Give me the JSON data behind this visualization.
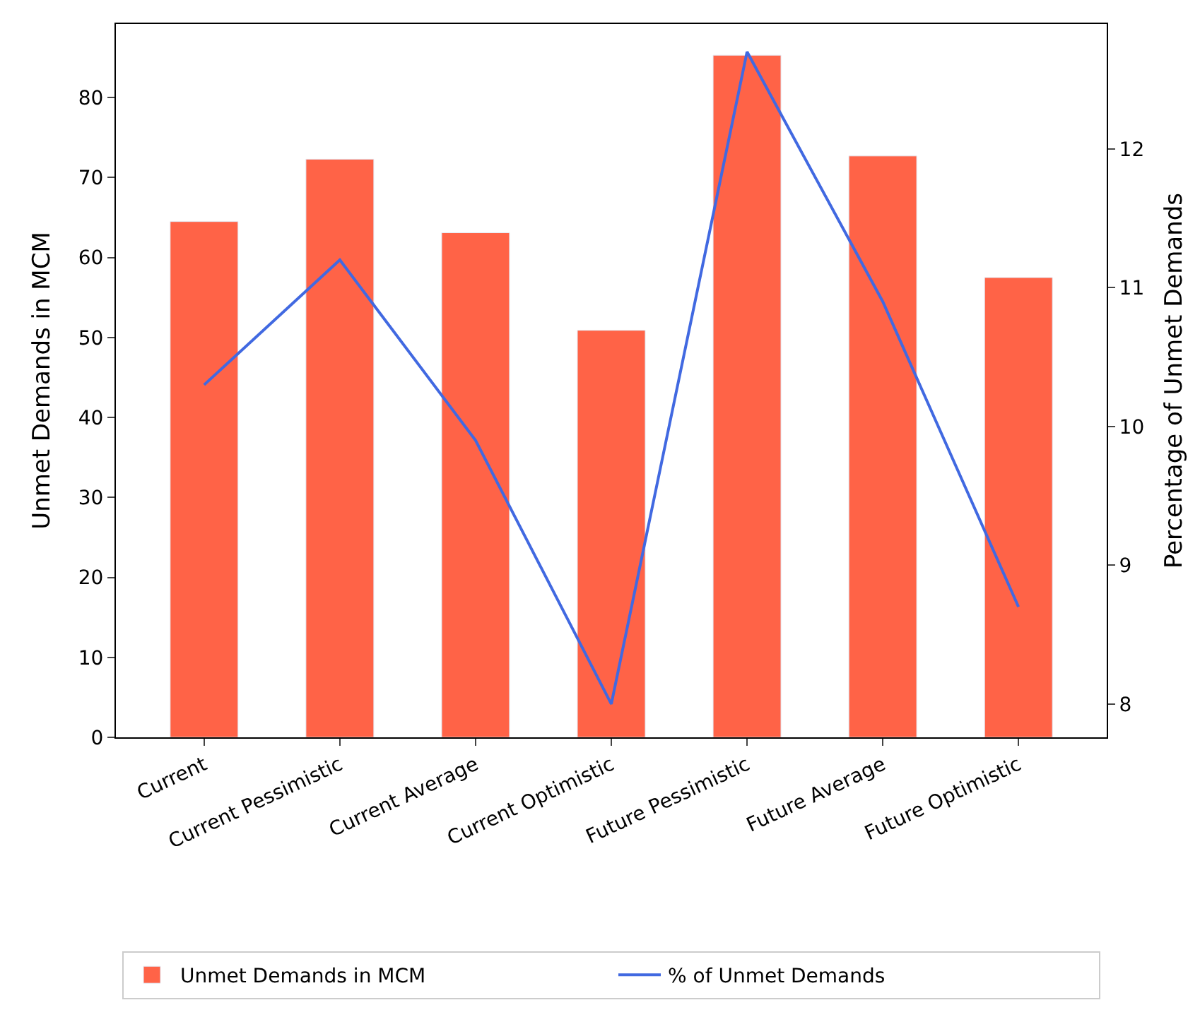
{
  "chart_data": {
    "type": "bar",
    "categories": [
      "Current",
      "Current Pessimistic",
      "Current Average",
      "Current Optimistic",
      "Future Pessimistic",
      "Future Average",
      "Future Optimistic"
    ],
    "series": [
      {
        "name": "Unmet Demands in MCM",
        "color": "#ff6347",
        "values": [
          64.5,
          72.3,
          63.1,
          50.9,
          85.3,
          72.7,
          57.5
        ]
      },
      {
        "name": "% of Unmet Demands",
        "color": "#4169e1",
        "type": "line",
        "axis": "y2",
        "values": [
          10.3,
          11.2,
          9.9,
          8.0,
          12.7,
          10.9,
          8.7
        ]
      }
    ],
    "ylabel": "Unmet Demands in MCM",
    "y2label": "Percentage of Unmet Demands",
    "ylim": [
      0,
      89.2
    ],
    "yticks": [
      0,
      10,
      20,
      30,
      40,
      50,
      60,
      70,
      80
    ],
    "y2lim": [
      7.76,
      12.9
    ],
    "y2ticks": [
      8,
      9,
      10,
      11,
      12
    ],
    "legend": "bottom",
    "marker": "none",
    "line_style": "solid"
  }
}
